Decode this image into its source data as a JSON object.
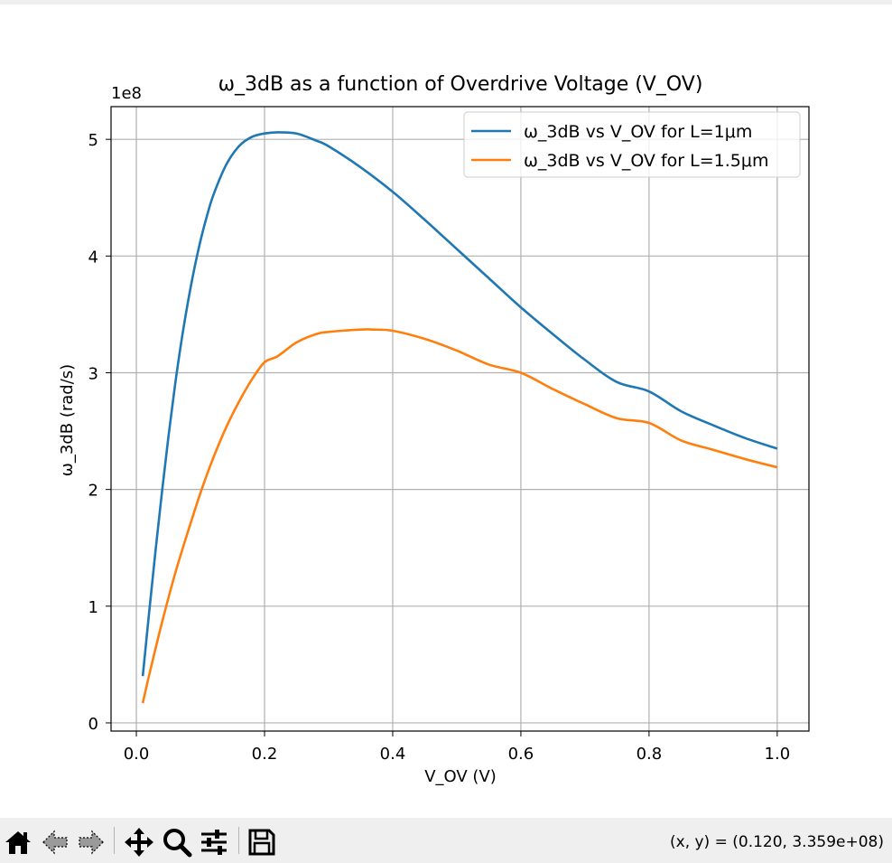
{
  "window": {
    "toolbar": {
      "home_icon": "home-icon",
      "back_icon": "back-arrow-icon",
      "forward_icon": "forward-arrow-icon",
      "pan_icon": "pan-move-icon",
      "zoom_icon": "zoom-magnifier-icon",
      "configure_icon": "configure-subplots-icon",
      "save_icon": "save-floppy-icon"
    },
    "coords_readout": "(x, y) = (0.120, 3.359e+08)"
  },
  "colors": {
    "series_1": "#1f77b4",
    "series_2": "#ff7f0e",
    "grid": "#b0b0b0",
    "toolbar_bg": "#efefef"
  },
  "chart_data": {
    "type": "line",
    "title": "ω_3dB as a function of Overdrive Voltage (V_OV)",
    "xlabel": "V_OV (V)",
    "ylabel": "ω_3dB (rad/s)",
    "y_offset_label": "1e8",
    "xlim": [
      -0.0395,
      1.0495
    ],
    "ylim": [
      -7000000.0,
      528000000.0
    ],
    "x_ticks": [
      0.0,
      0.2,
      0.4,
      0.6,
      0.8,
      1.0
    ],
    "x_tick_labels": [
      "0.0",
      "0.2",
      "0.4",
      "0.6",
      "0.8",
      "1.0"
    ],
    "y_ticks": [
      0,
      100000000.0,
      200000000.0,
      300000000.0,
      400000000.0,
      500000000.0
    ],
    "y_tick_labels": [
      "0",
      "1",
      "2",
      "3",
      "4",
      "5"
    ],
    "grid": true,
    "legend_position": "upper right",
    "series": [
      {
        "name": "ω_3dB vs V_OV for L=1μm",
        "color": "#1f77b4",
        "x": [
          0.01,
          0.02,
          0.03,
          0.04,
          0.05,
          0.06,
          0.07,
          0.08,
          0.09,
          0.1,
          0.11,
          0.12,
          0.14,
          0.16,
          0.18,
          0.2,
          0.22,
          0.25,
          0.28,
          0.3,
          0.35,
          0.4,
          0.45,
          0.5,
          0.55,
          0.6,
          0.65,
          0.7,
          0.75,
          0.8,
          0.85,
          0.9,
          0.95,
          1.0
        ],
        "y": [
          40000000.0,
          95000000.0,
          148000000.0,
          198000000.0,
          245000000.0,
          288000000.0,
          326000000.0,
          359000000.0,
          388000000.0,
          413000000.0,
          434000000.0,
          452000000.0,
          478000000.0,
          494000000.0,
          502000000.0,
          505000000.0,
          506000000.0,
          505000000.0,
          499000000.0,
          494000000.0,
          476000000.0,
          455000000.0,
          431000000.0,
          406000000.0,
          381000000.0,
          356000000.0,
          333000000.0,
          311000000.0,
          292000000.0,
          284000000.0,
          267000000.0,
          255000000.0,
          244000000.0,
          235000000.0
        ]
      },
      {
        "name": "ω_3dB vs V_OV for L=1.5μm",
        "color": "#ff7f0e",
        "x": [
          0.01,
          0.02,
          0.04,
          0.06,
          0.08,
          0.1,
          0.12,
          0.14,
          0.16,
          0.18,
          0.2,
          0.22,
          0.25,
          0.28,
          0.3,
          0.35,
          0.37,
          0.4,
          0.45,
          0.5,
          0.55,
          0.6,
          0.65,
          0.7,
          0.75,
          0.8,
          0.85,
          0.9,
          0.95,
          1.0
        ],
        "y": [
          17000000.0,
          41000000.0,
          86000000.0,
          127000000.0,
          163000000.0,
          197000000.0,
          227000000.0,
          253000000.0,
          275000000.0,
          294000000.0,
          309000000.0,
          314000000.0,
          326000000.0,
          333000000.0,
          335000000.0,
          337000000.0,
          337000000.0,
          336000000.0,
          329000000.0,
          319000000.0,
          307000000.0,
          300000000.0,
          286000000.0,
          273000000.0,
          261000000.0,
          257000000.0,
          242000000.0,
          234000000.0,
          226000000.0,
          219000000.0
        ]
      }
    ]
  }
}
